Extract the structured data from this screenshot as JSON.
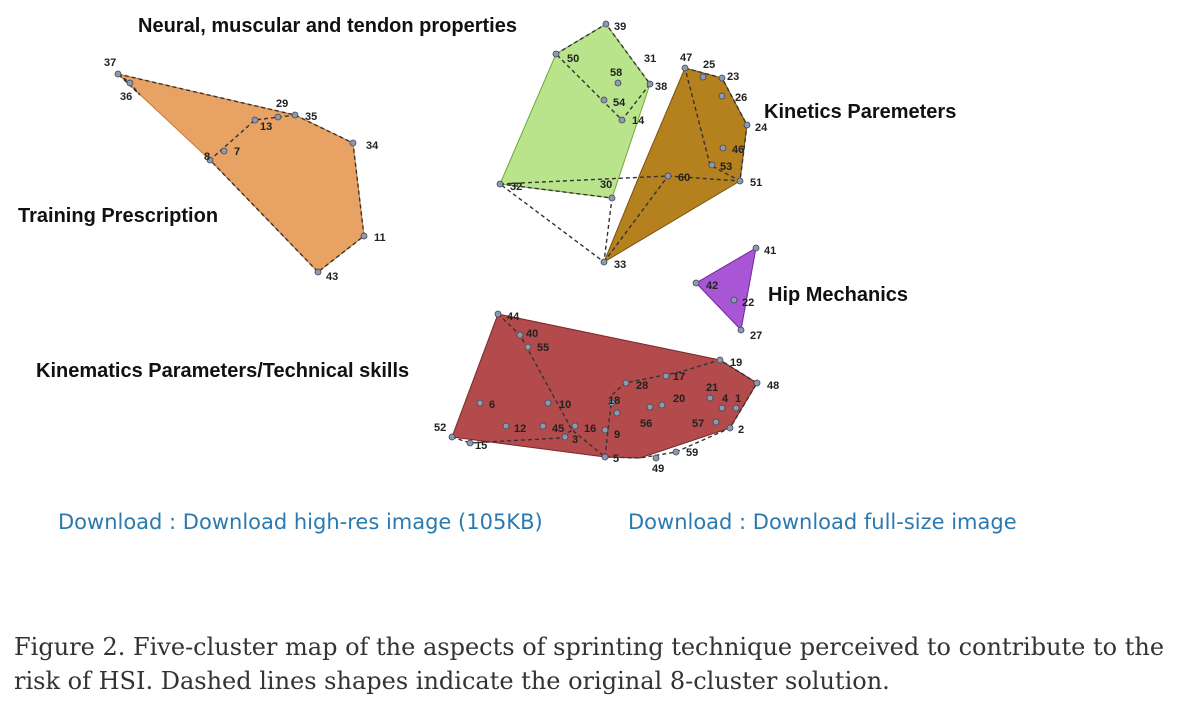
{
  "clusters": {
    "neural": {
      "name": "Neural, muscular and tendon properties",
      "color": "#b9e48c",
      "points": [
        "39",
        "50",
        "58",
        "31",
        "38",
        "54",
        "14",
        "32",
        "30"
      ]
    },
    "kinetics": {
      "name": "Kinetics Paremeters",
      "color": "#b5801e",
      "points": [
        "47",
        "25",
        "23",
        "26",
        "24",
        "46",
        "53",
        "51",
        "60",
        "33"
      ]
    },
    "training": {
      "name": "Training Prescription",
      "color": "#e8a364",
      "points": [
        "37",
        "36",
        "29",
        "13",
        "35",
        "34",
        "8",
        "7",
        "11",
        "43"
      ]
    },
    "hip": {
      "name": "Hip Mechanics",
      "color": "#a855d6",
      "points": [
        "41",
        "42",
        "22",
        "27"
      ]
    },
    "kinematics": {
      "name": "Kinematics Parameters/Technical skills",
      "color": "#b34a4b",
      "points": [
        "44",
        "40",
        "55",
        "19",
        "48",
        "17",
        "28",
        "21",
        "18",
        "20",
        "4",
        "1",
        "6",
        "10",
        "56",
        "57",
        "2",
        "52",
        "12",
        "45",
        "16",
        "3",
        "9",
        "15",
        "5",
        "59",
        "49"
      ]
    }
  },
  "links": {
    "highres": "Download : Download high-res image (105KB)",
    "fullsize": "Download : Download full-size image"
  },
  "caption": {
    "line1": "Figure 2. Five-cluster map of the aspects of sprinting technique perceived to contribute to the",
    "line2": "risk of HSI. Dashed lines shapes indicate the original 8-cluster solution."
  }
}
